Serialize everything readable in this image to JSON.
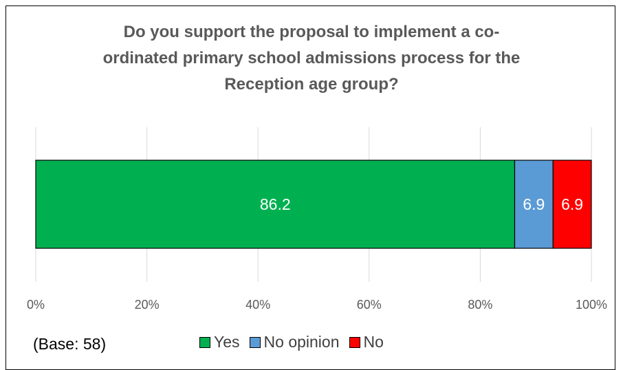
{
  "chart_data": {
    "type": "bar",
    "orientation": "horizontal",
    "stacked": true,
    "percent": true,
    "title_lines": [
      "Do you support the proposal to implement a co-",
      "ordinated primary school admissions process for the",
      "Reception age group?"
    ],
    "categories": [
      ""
    ],
    "series": [
      {
        "name": "Yes",
        "values": [
          86.2
        ],
        "color": "#00B050",
        "label_color": "#ffffff"
      },
      {
        "name": "No opinion",
        "values": [
          6.9
        ],
        "color": "#5B9BD5",
        "label_color": "#ffffff"
      },
      {
        "name": "No",
        "values": [
          6.9
        ],
        "color": "#FF0000",
        "label_color": "#ffffff"
      }
    ],
    "xlim": [
      0,
      100
    ],
    "xticks": [
      0,
      20,
      40,
      60,
      80,
      100
    ],
    "xtick_labels": [
      "0%",
      "20%",
      "40%",
      "60%",
      "80%",
      "100%"
    ],
    "grid": true,
    "legend_position": "bottom",
    "footnote": "(Base: 58)"
  }
}
